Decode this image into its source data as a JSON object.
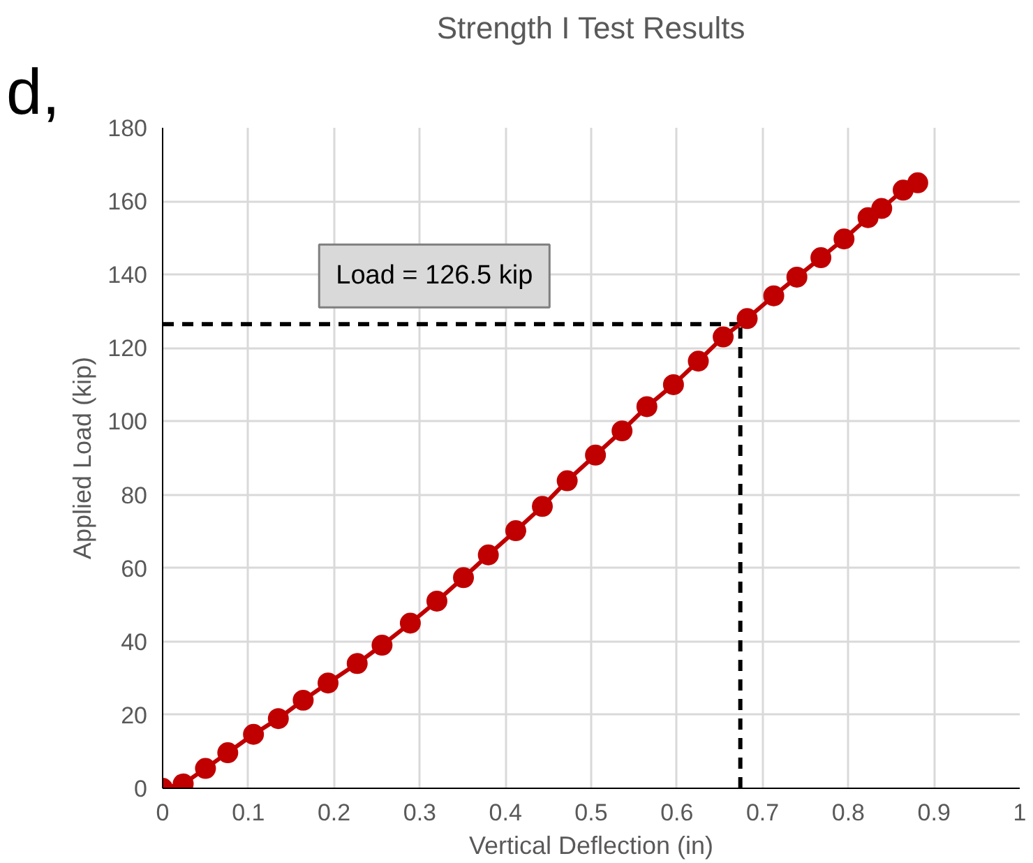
{
  "chart_data": {
    "type": "line",
    "title": "Strength I Test Results",
    "xlabel": "Vertical Deflection (in)",
    "ylabel": "Applied Load (kip)",
    "x": [
      0,
      0.024,
      0.05,
      0.076,
      0.106,
      0.135,
      0.164,
      0.193,
      0.227,
      0.256,
      0.289,
      0.32,
      0.351,
      0.38,
      0.412,
      0.443,
      0.472,
      0.505,
      0.536,
      0.565,
      0.596,
      0.625,
      0.654,
      0.682,
      0.713,
      0.74,
      0.768,
      0.795,
      0.823,
      0.839,
      0.864,
      0.881
    ],
    "series": [
      {
        "color": "#c00000",
        "values": [
          0,
          1.2,
          5.4,
          9.7,
          14.7,
          19,
          24,
          28.7,
          34,
          39,
          45,
          51,
          57.4,
          63.6,
          70.2,
          76.8,
          83.8,
          90.8,
          97.4,
          104,
          110,
          116.4,
          123,
          128,
          134.2,
          139.3,
          144.6,
          149.7,
          155.5,
          158,
          163,
          165
        ]
      }
    ],
    "xlim": [
      0,
      1
    ],
    "xticks": [
      0,
      0.1,
      0.2,
      0.3,
      0.4,
      0.5,
      0.6,
      0.7,
      0.8,
      0.9,
      1
    ],
    "ylim": [
      0,
      180
    ],
    "yticks": [
      0,
      20,
      40,
      60,
      80,
      100,
      120,
      140,
      160,
      180
    ],
    "grid": true,
    "marker": "circle",
    "line_style": "solid",
    "ref_lines": [
      {
        "axis": "y",
        "value": 126.5,
        "label": "Load = 126.5 kip",
        "color": "#000000",
        "line_style": "dashed"
      },
      {
        "axis": "x",
        "value": 0.674,
        "color": "#000000",
        "line_style": "dashed"
      }
    ],
    "annotations": [
      "d,"
    ]
  }
}
